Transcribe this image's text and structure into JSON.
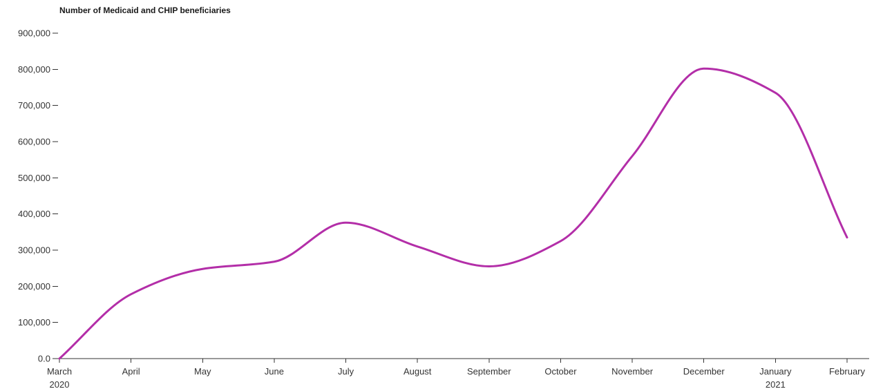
{
  "chart_data": {
    "type": "line",
    "title": "Number of Medicaid and CHIP beneficiaries",
    "xlabel": "",
    "ylabel": "",
    "categories": [
      "March",
      "April",
      "May",
      "June",
      "July",
      "August",
      "September",
      "October",
      "November",
      "December",
      "January",
      "February"
    ],
    "year_labels": [
      {
        "category": "March",
        "year": "2020"
      },
      {
        "category": "January",
        "year": "2021"
      }
    ],
    "series": [
      {
        "values": [
          0,
          178000,
          248000,
          268000,
          376000,
          310000,
          255000,
          325000,
          560000,
          802000,
          735000,
          335000
        ]
      }
    ],
    "ylim": [
      0,
      900000
    ],
    "y_ticks": [
      0,
      100000,
      200000,
      300000,
      400000,
      500000,
      600000,
      700000,
      800000,
      900000
    ],
    "y_tick_labels": [
      "0.0",
      "100,000",
      "200,000",
      "300,000",
      "400,000",
      "500,000",
      "600,000",
      "700,000",
      "800,000",
      "900,000"
    ],
    "grid": false,
    "legend": "none",
    "line_color": "#b32ea8",
    "axis_color": "#333333"
  }
}
